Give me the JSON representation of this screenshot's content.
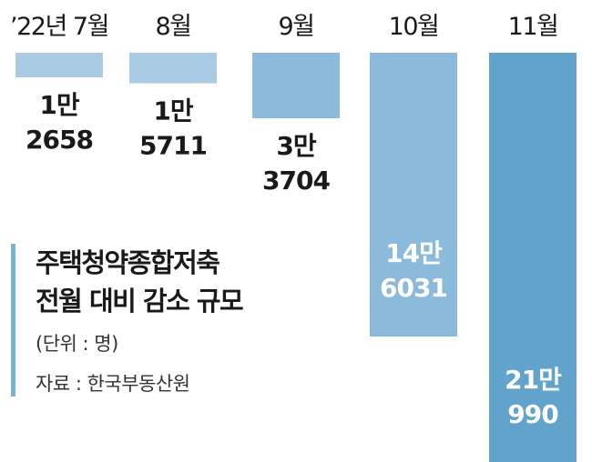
{
  "chart_data": {
    "type": "bar",
    "orientation": "vertical-downward",
    "categories": [
      "’22년 7월",
      "8월",
      "9월",
      "10월",
      "11월"
    ],
    "values": [
      12658,
      15711,
      33704,
      146031,
      210990
    ],
    "value_labels": [
      [
        "1만",
        "2658"
      ],
      [
        "1만",
        "5711"
      ],
      [
        "3만",
        "3704"
      ],
      [
        "14만",
        "6031"
      ],
      [
        "21만",
        "990"
      ]
    ],
    "title_lines": [
      "주택청약종합저축",
      "전월 대비 감소 규모"
    ],
    "unit": "(단위 : 명)",
    "source": "자료 : 한국부동산원",
    "ylim": [
      0,
      220000
    ],
    "colors": {
      "bar_light": "#a9cbe4",
      "bar_mid": "#8bbadb",
      "bar_dark": "#62a3cc",
      "accent": "#7ab3d6"
    }
  }
}
